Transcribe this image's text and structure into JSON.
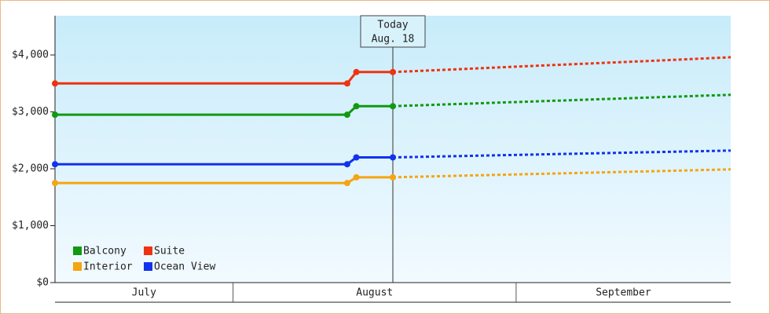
{
  "chart_data": {
    "type": "line",
    "x": [
      11.5,
      43.5,
      44.5,
      48.5,
      55,
      62,
      70,
      78,
      85.5
    ],
    "xlim": [
      11.5,
      85.5
    ],
    "x_bands": [
      {
        "label": "July",
        "start": 11.5,
        "end": 31
      },
      {
        "label": "August",
        "start": 31,
        "end": 62
      },
      {
        "label": "September",
        "start": 62,
        "end": 85.5
      }
    ],
    "today": {
      "x": 48.5,
      "label": "Today",
      "date": "Aug. 18"
    },
    "ylim": [
      0,
      4690
    ],
    "yticks": [
      {
        "value": 0,
        "label": "$0"
      },
      {
        "value": 1000,
        "label": "$1,000"
      },
      {
        "value": 2000,
        "label": "$2,000"
      },
      {
        "value": 3000,
        "label": "$3,000"
      },
      {
        "value": 4000,
        "label": "$4,000"
      }
    ],
    "series": [
      {
        "name": "Balcony",
        "color": "#119911",
        "values": [
          2950,
          2950,
          3100,
          3100,
          null,
          null,
          null,
          null,
          null
        ],
        "forecast": [
          null,
          null,
          null,
          3100,
          3135,
          3173,
          3216,
          3260,
          3300
        ]
      },
      {
        "name": "Suite",
        "color": "#ee3311",
        "values": [
          3500,
          3500,
          3700,
          3700,
          null,
          null,
          null,
          null,
          null
        ],
        "forecast": [
          null,
          null,
          null,
          3700,
          3745,
          3795,
          3850,
          3905,
          3960
        ]
      },
      {
        "name": "Interior",
        "color": "#f5a511",
        "values": [
          1750,
          1750,
          1850,
          1850,
          null,
          null,
          null,
          null,
          null
        ],
        "forecast": [
          null,
          null,
          null,
          1850,
          1875,
          1901,
          1931,
          1961,
          1990
        ]
      },
      {
        "name": "Ocean View",
        "color": "#1133ee",
        "values": [
          2080,
          2080,
          2200,
          2200,
          null,
          null,
          null,
          null,
          null
        ],
        "forecast": [
          null,
          null,
          null,
          2200,
          2221,
          2244,
          2270,
          2296,
          2320
        ]
      }
    ]
  }
}
